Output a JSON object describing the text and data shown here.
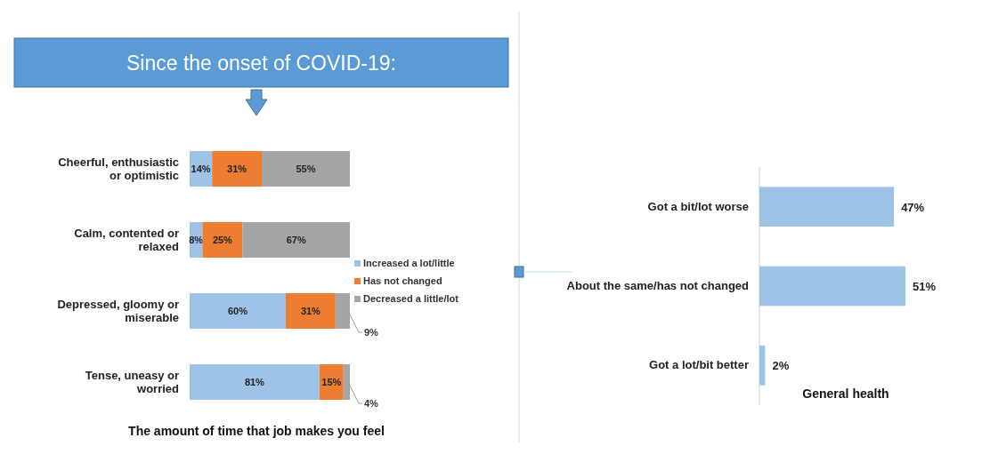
{
  "chart_data": [
    {
      "type": "bar",
      "orientation": "horizontal",
      "stacked": true,
      "title": "Since the onset of COVID-19:",
      "xlabel": "The amount of time that job makes you feel",
      "categories": [
        "Cheerful, enthusiastic or optimistic",
        "Calm, contented or relaxed",
        "Depressed, gloomy or miserable",
        "Tense, uneasy or worried"
      ],
      "series": [
        {
          "name": "Increased a lot/little",
          "color": "#9dc3e6",
          "values": [
            14,
            8,
            60,
            81
          ],
          "value_labels": [
            "14%",
            "8%",
            "60%",
            "81%"
          ]
        },
        {
          "name": "Has not changed",
          "color": "#ed7d31",
          "values": [
            31,
            25,
            31,
            15
          ],
          "value_labels": [
            "31%",
            "25%",
            "31%",
            "15%"
          ]
        },
        {
          "name": "Decreased a little/lot",
          "color": "#a5a5a5",
          "values": [
            55,
            67,
            9,
            4
          ],
          "value_labels": [
            "55%",
            "67%",
            "9%",
            "4%"
          ]
        }
      ],
      "legend": "right"
    },
    {
      "type": "bar",
      "orientation": "horizontal",
      "xlabel": "General health",
      "categories": [
        "Got a bit/lot worse",
        "About the same/has not changed",
        "Got a lot/bit better"
      ],
      "values": [
        47,
        51,
        2
      ],
      "color": "#9dc3e6",
      "value_labels": [
        "47%",
        "51%",
        "2%"
      ]
    }
  ]
}
